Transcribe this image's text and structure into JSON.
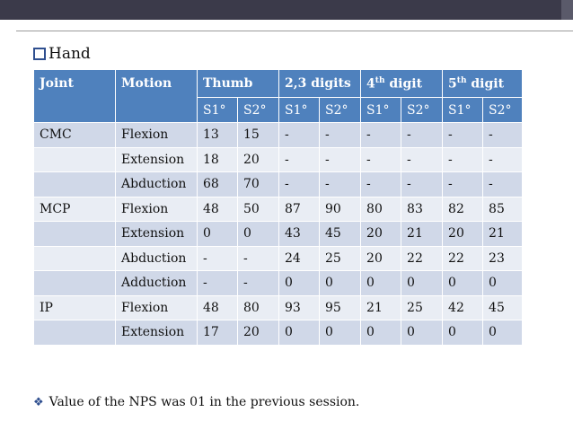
{
  "heading": {
    "text": "Hand"
  },
  "table": {
    "columns": {
      "joint": "Joint",
      "motion": "Motion",
      "thumb": "Thumb",
      "digits23": "2,3 digits",
      "digit4_num": "4",
      "digit4_sup": "th",
      "digit4_rest": " digit",
      "digit5_num": "5",
      "digit5_sup": "th",
      "digit5_rest": " digit"
    },
    "subheaders": [
      "S1°",
      "S2°",
      "S1°",
      "S2°",
      "S1°",
      "S2°",
      "S1°",
      "S2°"
    ],
    "rows": [
      {
        "joint": "CMC",
        "motion": "Flexion",
        "values": [
          "13",
          "15",
          "-",
          "-",
          "-",
          "-",
          "-",
          "-"
        ]
      },
      {
        "joint": "",
        "motion": "Extension",
        "values": [
          "18",
          "20",
          "-",
          "-",
          "-",
          "-",
          "-",
          "-"
        ]
      },
      {
        "joint": "",
        "motion": "Abduction",
        "values": [
          "68",
          "70",
          "-",
          "-",
          "-",
          "-",
          "-",
          "-"
        ]
      },
      {
        "joint": "MCP",
        "motion": "Flexion",
        "values": [
          "48",
          "50",
          "87",
          "90",
          "80",
          "83",
          "82",
          "85"
        ]
      },
      {
        "joint": "",
        "motion": "Extension",
        "values": [
          "0",
          "0",
          "43",
          "45",
          "20",
          "21",
          "20",
          "21"
        ]
      },
      {
        "joint": "",
        "motion": "Abduction",
        "values": [
          "-",
          "-",
          "24",
          "25",
          "20",
          "22",
          "22",
          "23"
        ]
      },
      {
        "joint": "",
        "motion": "Adduction",
        "values": [
          "-",
          "-",
          "0",
          "0",
          "0",
          "0",
          "0",
          "0"
        ]
      },
      {
        "joint": "IP",
        "motion": "Flexion",
        "values": [
          "48",
          "80",
          "93",
          "95",
          "21",
          "25",
          "42",
          "45"
        ]
      },
      {
        "joint": "",
        "motion": "Extension",
        "values": [
          "17",
          "20",
          "0",
          "0",
          "0",
          "0",
          "0",
          "0"
        ]
      }
    ]
  },
  "note": {
    "text": "Value of the NPS was 01 in the previous session."
  },
  "colors": {
    "header": "#4f81bd",
    "row_odd": "#d0d8e8",
    "row_even": "#e9edf4",
    "top_bar": "#3b3a4a"
  },
  "icons": {
    "heading_bullet": "checkbox-icon",
    "note_bullet": "diamond-bullet-icon"
  }
}
